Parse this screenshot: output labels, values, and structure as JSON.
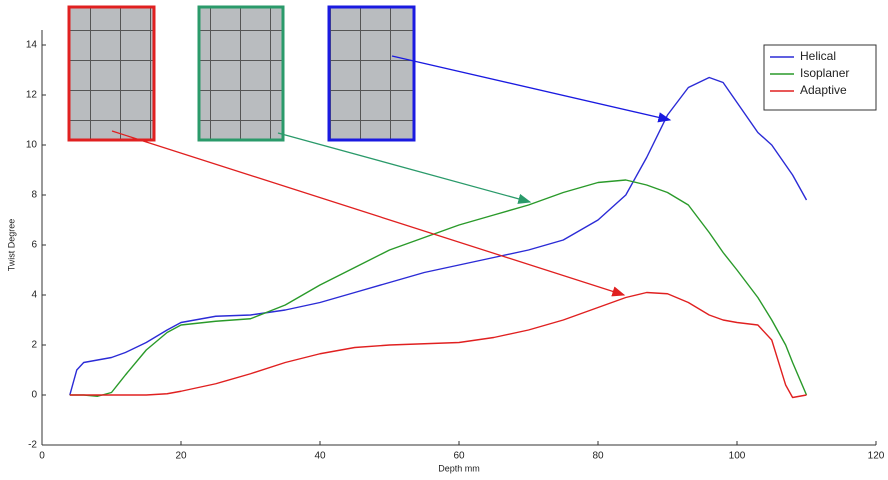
{
  "chart_data": {
    "type": "line",
    "x_label": "Depth mm",
    "y_label": "Twist Degree",
    "x": [
      4,
      5,
      6,
      8,
      10,
      12,
      15,
      18,
      20,
      25,
      30,
      35,
      40,
      45,
      50,
      55,
      60,
      65,
      70,
      75,
      80,
      84,
      87,
      90,
      93,
      96,
      98,
      100,
      103,
      105,
      107,
      108,
      110
    ],
    "series": [
      {
        "name": "Helical",
        "color": "#2b2bd6",
        "values": [
          0,
          1.0,
          1.3,
          1.4,
          1.5,
          1.7,
          2.1,
          2.6,
          2.9,
          3.15,
          3.2,
          3.4,
          3.7,
          4.1,
          4.5,
          4.9,
          5.2,
          5.5,
          5.8,
          6.2,
          7.0,
          8.0,
          9.5,
          11.2,
          12.3,
          12.7,
          12.5,
          11.7,
          10.5,
          10.0,
          9.2,
          8.8,
          7.8
        ]
      },
      {
        "name": "Isoplaner",
        "color": "#2a9a2a",
        "values": [
          0,
          0,
          0,
          -0.05,
          0.1,
          0.8,
          1.8,
          2.5,
          2.8,
          2.95,
          3.05,
          3.6,
          4.4,
          5.1,
          5.8,
          6.3,
          6.8,
          7.2,
          7.6,
          8.1,
          8.5,
          8.6,
          8.4,
          8.1,
          7.6,
          6.5,
          5.7,
          5.0,
          3.9,
          3.0,
          2.0,
          1.3,
          0
        ]
      },
      {
        "name": "Adaptive",
        "color": "#e02020",
        "values": [
          0,
          0,
          0,
          0,
          0,
          0,
          0,
          0.05,
          0.15,
          0.45,
          0.85,
          1.3,
          1.65,
          1.9,
          2.0,
          2.05,
          2.1,
          2.3,
          2.6,
          3.0,
          3.5,
          3.9,
          4.1,
          4.05,
          3.7,
          3.2,
          3.0,
          2.9,
          2.8,
          2.2,
          0.4,
          -0.1,
          0
        ]
      }
    ],
    "xlim": [
      0,
      120
    ],
    "xticks": [
      0,
      20,
      40,
      60,
      80,
      100,
      120
    ],
    "ylim": [
      -2,
      14
    ],
    "yticks": [
      -2,
      0,
      2,
      4,
      6,
      8,
      10,
      12,
      14
    ],
    "legend": "top-right"
  }
}
